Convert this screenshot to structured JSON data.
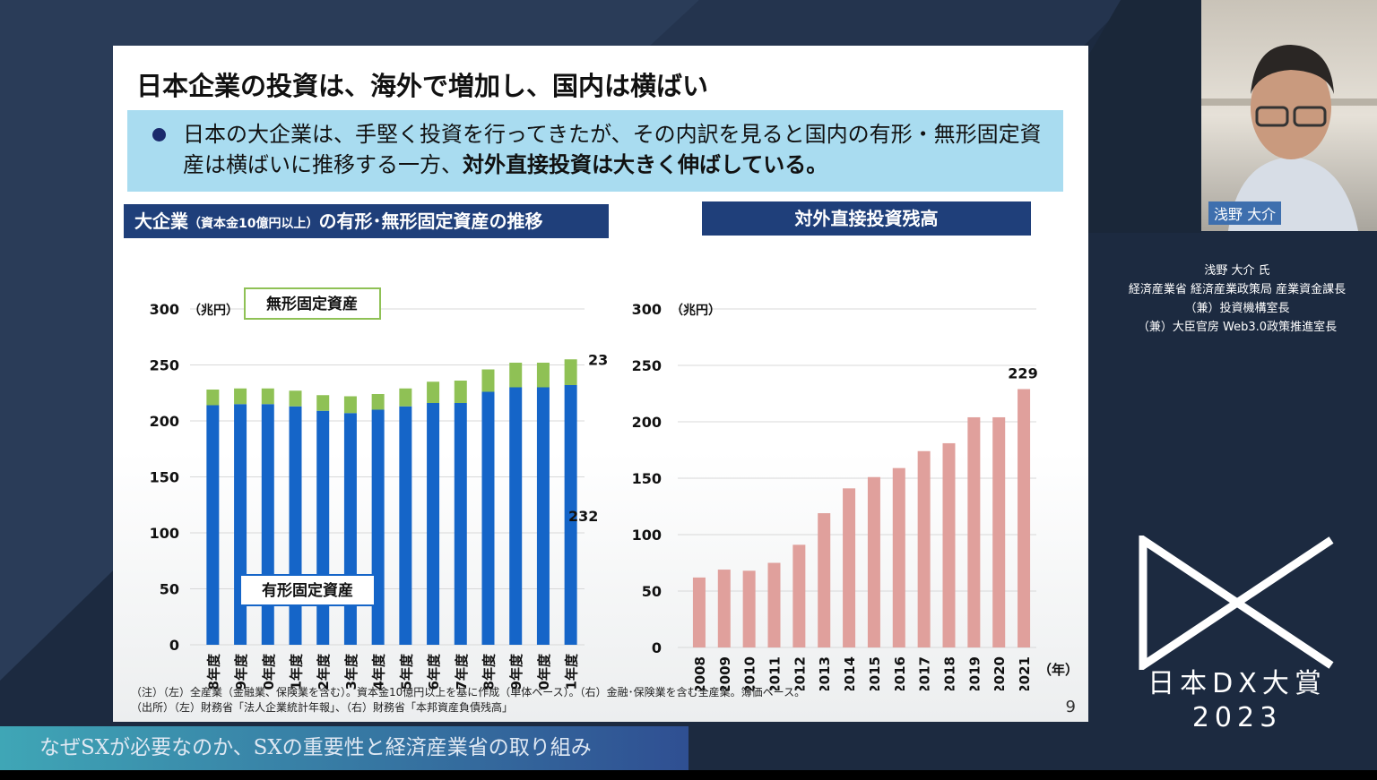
{
  "slide": {
    "title": "日本企業の投資は、海外で増加し、国内は横ばい",
    "bullet_part1": "日本の大企業は、手堅く投資を行ってきたが、その内訳を見ると国内の有形・無形固定資産は横ばいに推移する一方、",
    "bullet_bold": "対外直接投資は大きく伸ばしている。",
    "left_heading": "大企業",
    "left_heading_small": "（資本金10億円以上）",
    "left_heading_rest": "の有形･無形固定資産の推移",
    "right_heading": "対外直接投資残高",
    "note_line1": "（注）（左）全産業（金融業、保険業を含む）。資本金10億円以上を基に作成（単体ベース）。（右）金融･保険業を含む全産業。簿価ベース。",
    "note_line2": "（出所）（左）財務省「法人企業統計年報」、（右）財務省「本邦資産負債残高」",
    "page_number": "9"
  },
  "chart_data": [
    {
      "type": "bar",
      "stacked": true,
      "unit": "（兆円）",
      "categories": [
        "2008年度",
        "2009年度",
        "2010年度",
        "2011年度",
        "2012年度",
        "2013年度",
        "2014年度",
        "2015年度",
        "2016年度",
        "2017年度",
        "2018年度",
        "2019年度",
        "2020年度",
        "2021年度"
      ],
      "series": [
        {
          "name": "有形固定資産",
          "color": "#1565c8",
          "values": [
            214,
            215,
            215,
            213,
            209,
            207,
            210,
            213,
            216,
            216,
            226,
            230,
            230,
            232
          ]
        },
        {
          "name": "無形固定資産",
          "color": "#8fc155",
          "values": [
            14,
            14,
            14,
            14,
            14,
            15,
            14,
            16,
            19,
            20,
            20,
            22,
            22,
            23
          ]
        }
      ],
      "data_labels": {
        "tangible_last": "232",
        "intangible_last": "23"
      },
      "yticks": [
        "0",
        "50",
        "100",
        "150",
        "200",
        "250",
        "300"
      ],
      "ylim": [
        0,
        300
      ],
      "grid": true
    },
    {
      "type": "bar",
      "unit": "（兆円）",
      "xlabel": "（年）",
      "categories": [
        "2008",
        "2009",
        "2010",
        "2011",
        "2012",
        "2013",
        "2014",
        "2015",
        "2016",
        "2017",
        "2018",
        "2019",
        "2020",
        "2021"
      ],
      "values": [
        62,
        69,
        68,
        75,
        91,
        119,
        141,
        151,
        159,
        174,
        181,
        204,
        204,
        229
      ],
      "color": "#e0a09c",
      "data_labels": {
        "last": "229"
      },
      "yticks": [
        "0",
        "50",
        "100",
        "150",
        "200",
        "250",
        "300"
      ],
      "ylim": [
        0,
        300
      ],
      "grid": true
    }
  ],
  "webcam": {
    "name_tag": "浅野 大介"
  },
  "speaker": {
    "line1": "浅野 大介 氏",
    "line2": "経済産業省 経済産業政策局 産業資金課長",
    "line3": "（兼）投資機構室長",
    "line4": "（兼）大臣官房 Web3.0政策推進室長"
  },
  "event": {
    "logo_line1": "日本DX大賞",
    "logo_line2": "2023"
  },
  "caption": "なぜSXが必要なのか、SXの重要性と経済産業省の取り組み"
}
